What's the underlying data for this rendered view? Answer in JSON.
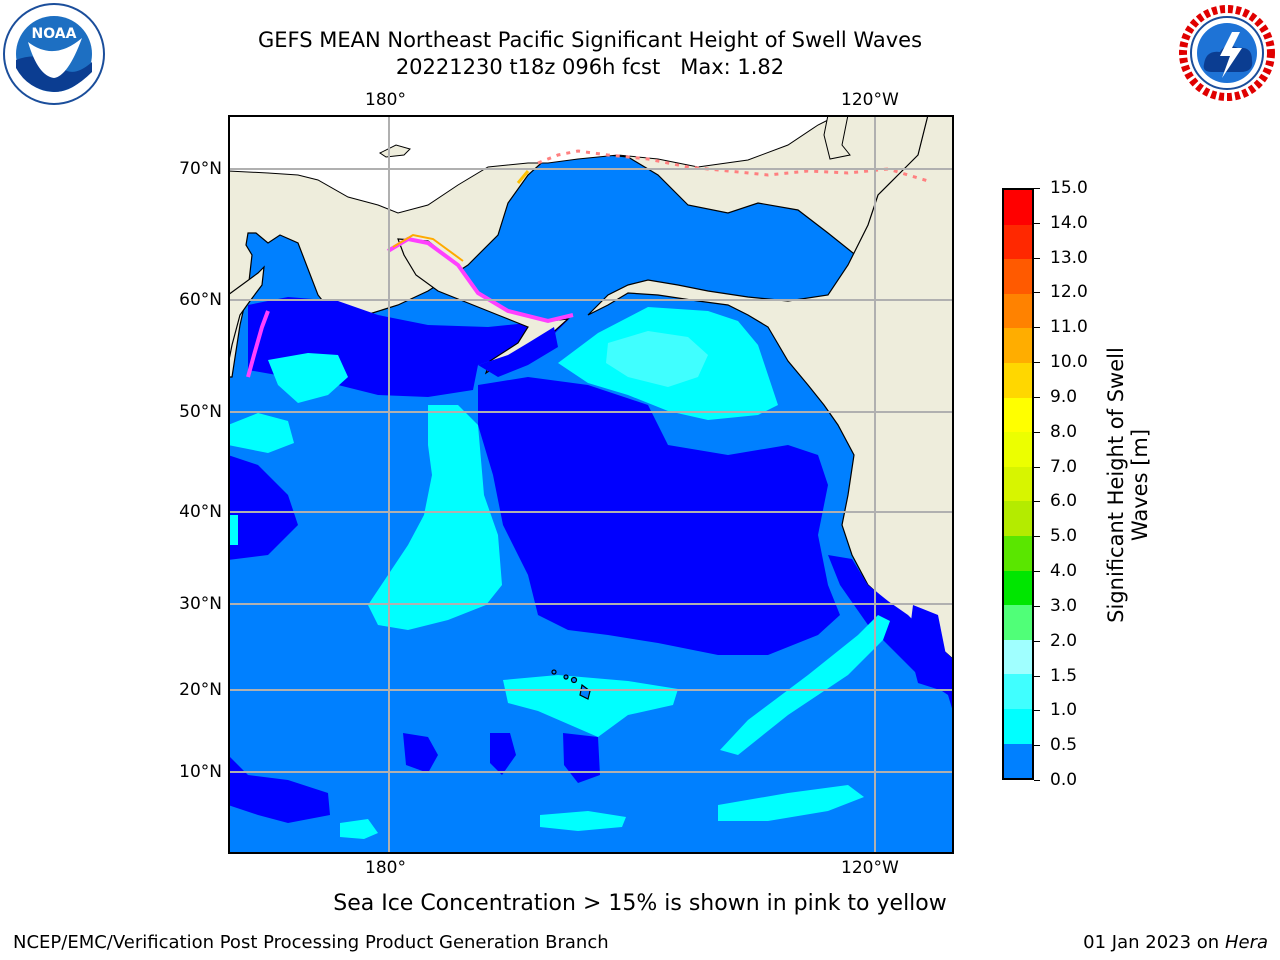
{
  "header": {
    "title_line1": "GEFS MEAN Northeast Pacific Significant Height of Swell Waves",
    "title_line2": "20221230 t18z 096h fcst   Max: 1.82"
  },
  "logos": {
    "left": {
      "name": "noaa-logo",
      "text": "NOAA"
    },
    "right": {
      "name": "nws-logo",
      "text": "NATIONAL WEATHER SERVICE"
    }
  },
  "map": {
    "lon_labels_top": [
      "180°",
      "120°W"
    ],
    "lon_labels_bottom": [
      "180°",
      "120°W"
    ],
    "lat_labels": [
      "70°N",
      "60°N",
      "50°N",
      "40°N",
      "30°N",
      "20°N",
      "10°N"
    ],
    "colors": {
      "land": "#eeeddc",
      "ocean_0_05": "#0000ff",
      "ocean_05_10": "#0080ff",
      "ocean_10_15": "#00ffff",
      "ocean_15_20": "#40ffff",
      "grid": "#b0b0b0"
    }
  },
  "colorbar": {
    "label": "Significant Height of Swell Waves [m]",
    "ticks": [
      "15.0",
      "14.0",
      "13.0",
      "12.0",
      "11.0",
      "10.0",
      "9.0",
      "8.0",
      "7.0",
      "6.0",
      "5.0",
      "4.0",
      "3.0",
      "2.0",
      "1.5",
      "1.0",
      "0.5",
      "0.0"
    ],
    "colors_top_to_bottom": [
      "#ff0000",
      "#ff2800",
      "#ff5a00",
      "#ff8200",
      "#ffad00",
      "#ffd700",
      "#ffff00",
      "#ecff00",
      "#d7f500",
      "#b4eb00",
      "#5ae600",
      "#00e600",
      "#50ff78",
      "#a0ffff",
      "#40ffff",
      "#00ffff",
      "#0080ff",
      "#0000ff"
    ]
  },
  "note": "Sea Ice Concentration > 15% is shown in pink to yellow",
  "footer": {
    "left": "NCEP/EMC/Verification Post Processing Product Generation Branch",
    "right_prefix": "01 Jan 2023 on ",
    "right_host": "Hera"
  }
}
